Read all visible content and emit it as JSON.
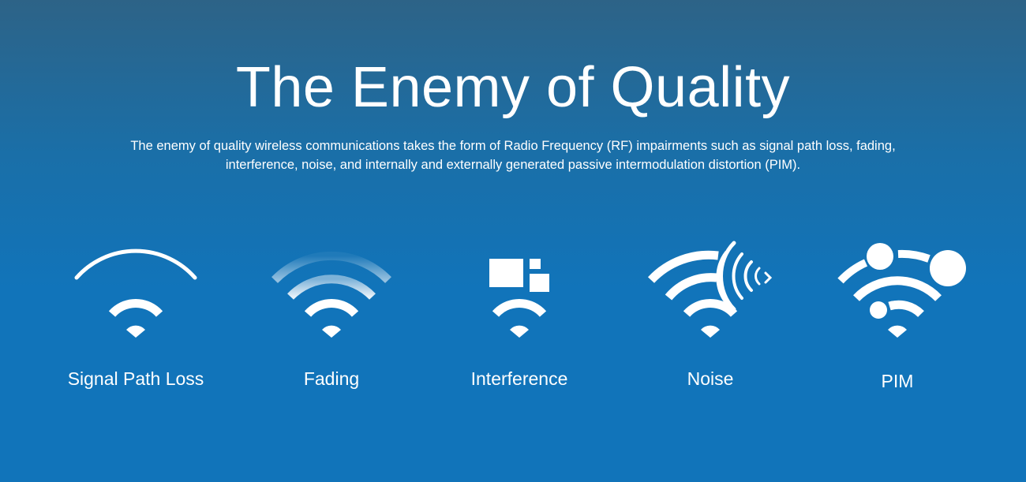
{
  "header": {
    "title": "The Enemy of Quality",
    "subtitle": "The enemy of quality wireless communications takes the form of Radio Frequency (RF) impairments such as signal path loss, fading, interference, noise, and internally and externally generated passive intermodulation distortion (PIM)."
  },
  "impairments": [
    {
      "label": "Signal Path Loss",
      "icon": "wifi-signal-loss-icon"
    },
    {
      "label": "Fading",
      "icon": "wifi-fading-icon"
    },
    {
      "label": "Interference",
      "icon": "wifi-interference-icon"
    },
    {
      "label": "Noise",
      "icon": "wifi-noise-icon"
    },
    {
      "label": "PIM",
      "icon": "wifi-pim-icon"
    }
  ],
  "colors": {
    "background_top": "#2d6387",
    "background_bottom": "#1174ba",
    "foreground": "#ffffff"
  }
}
